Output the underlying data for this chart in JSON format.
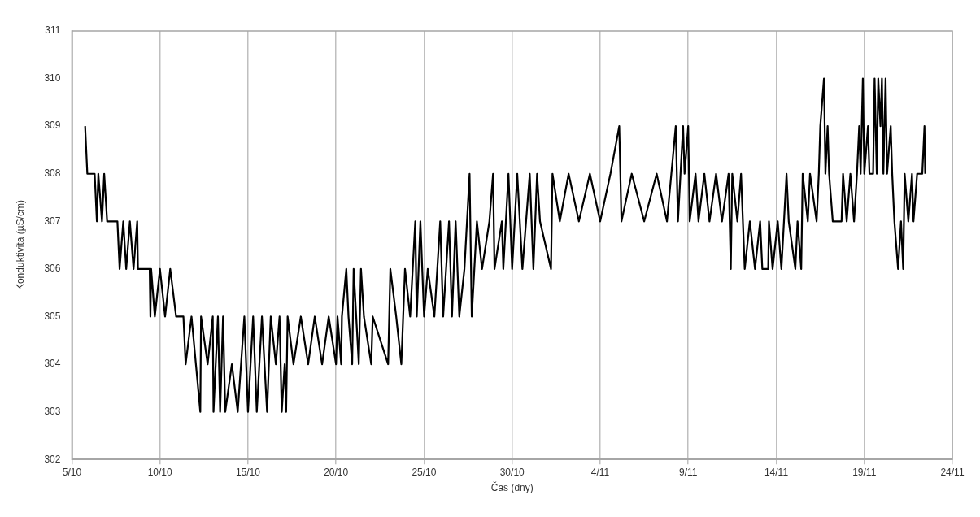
{
  "chart_data": {
    "type": "line",
    "xlabel": "Čas (dny)",
    "ylabel": "Konduktivita (µS/cm)",
    "grid": "x",
    "legend": false,
    "marker": "none",
    "line_style": "solid",
    "xlim": [
      "--10-05",
      "--11-24"
    ],
    "xticks": [
      {
        "value": "--10-05",
        "label": "5/10"
      },
      {
        "value": "--10-10",
        "label": "10/10"
      },
      {
        "value": "--10-15",
        "label": "15/10"
      },
      {
        "value": "--10-20",
        "label": "20/10"
      },
      {
        "value": "--10-25",
        "label": "25/10"
      },
      {
        "value": "--10-30",
        "label": "30/10"
      },
      {
        "value": "--11-04",
        "label": "4/11"
      },
      {
        "value": "--11-09",
        "label": "9/11"
      },
      {
        "value": "--11-14",
        "label": "14/11"
      },
      {
        "value": "--11-19",
        "label": "19/11"
      },
      {
        "value": "--11-24",
        "label": "24/11"
      }
    ],
    "ylim": [
      302,
      311
    ],
    "yticks": [
      302,
      303,
      304,
      305,
      306,
      307,
      308,
      309,
      310,
      311
    ],
    "series": [
      {
        "color": "#000000",
        "x": [
          "--10-05T18:00",
          "--10-05T21:00",
          "--10-06T07:00",
          "--10-06T10:00",
          "--10-06T12:00",
          "--10-06T17:00",
          "--10-06T20:00",
          "--10-07T00:00",
          "--10-07T14:00",
          "--10-07T17:00",
          "--10-07T22:00",
          "--10-08T02:00",
          "--10-08T07:00",
          "--10-08T12:00",
          "--10-08T17:00",
          "--10-08T18:00",
          "--10-09T10:00",
          "--10-09T11:00",
          "--10-09T12:00",
          "--10-09T17:00",
          "--10-10T00:00",
          "--10-10T07:00",
          "--10-10T14:00",
          "--10-10T22:00",
          "--10-11T08:00",
          "--10-11T11:00",
          "--10-11T19:00",
          "--10-12T07:00",
          "--10-12T08:00",
          "--10-12T17:00",
          "--10-13T00:00",
          "--10-13T01:00",
          "--10-13T07:00",
          "--10-13T10:00",
          "--10-13T14:00",
          "--10-13T17:00",
          "--10-14T02:00",
          "--10-14T10:00",
          "--10-14T19:00",
          "--10-15T00:00",
          "--10-15T07:00",
          "--10-15T12:00",
          "--10-15T19:00",
          "--10-16T02:00",
          "--10-16T07:00",
          "--10-16T14:00",
          "--10-16T19:00",
          "--10-16T22:00",
          "--10-17T02:00",
          "--10-17T04:00",
          "--10-17T06:00",
          "--10-17T14:00",
          "--10-18T00:00",
          "--10-18T10:00",
          "--10-18T19:00",
          "--10-19T05:00",
          "--10-19T14:00",
          "--10-20T00:00",
          "--10-20T02:00",
          "--10-20T07:00",
          "--10-20T08:00",
          "--10-20T14:00",
          "--10-20T17:00",
          "--10-20T22:00",
          "--10-21T00:00",
          "--10-21T07:00",
          "--10-21T10:00",
          "--10-21T14:00",
          "--10-22T00:00",
          "--10-22T02:00",
          "--10-22T23:00",
          "--10-23T02:00",
          "--10-23T10:00",
          "--10-23T17:00",
          "--10-23T22:00",
          "--10-24T05:00",
          "--10-24T12:00",
          "--10-24T14:00",
          "--10-24T19:00",
          "--10-25T00:00",
          "--10-25T05:00",
          "--10-25T14:00",
          "--10-25T22:00",
          "--10-26T02:00",
          "--10-26T10:00",
          "--10-26T14:00",
          "--10-26T19:00",
          "--10-27T00:00",
          "--10-27T07:00",
          "--10-27T14:00",
          "--10-27T17:00",
          "--10-28T00:00",
          "--10-28T07:00",
          "--10-28T17:00",
          "--10-28T22:00",
          "--10-29T00:00",
          "--10-29T10:00",
          "--10-29T12:00",
          "--10-29T19:00",
          "--10-30T00:00",
          "--10-30T07:00",
          "--10-30T14:00",
          "--10-31T00:00",
          "--10-31T05:00",
          "--10-31T10:00",
          "--10-31T14:00",
          "--11-01T05:00",
          "--11-01T07:00",
          "--11-01T17:00",
          "--11-02T05:00",
          "--11-02T19:00",
          "--11-03T10:00",
          "--11-04T00:00",
          "--11-04T14:00",
          "--11-05T02:00",
          "--11-05T05:00",
          "--11-05T19:00",
          "--11-06T12:00",
          "--11-07T05:00",
          "--11-07T19:00",
          "--11-08T07:00",
          "--11-08T10:00",
          "--11-08T17:00",
          "--11-08T19:00",
          "--11-09T00:00",
          "--11-09T02:00",
          "--11-09T10:00",
          "--11-09T14:00",
          "--11-09T22:00",
          "--11-10T05:00",
          "--11-10T14:00",
          "--11-10T22:00",
          "--11-11T07:00",
          "--11-11T10:00",
          "--11-11T12:00",
          "--11-11T19:00",
          "--11-12T00:00",
          "--11-12T05:00",
          "--11-12T12:00",
          "--11-12T19:00",
          "--11-13T02:00",
          "--11-13T05:00",
          "--11-13T13:00",
          "--11-13T14:00",
          "--11-13T19:00",
          "--11-14T02:00",
          "--11-14T07:00",
          "--11-14T14:00",
          "--11-14T17:00",
          "--11-15T02:00",
          "--11-15T05:00",
          "--11-15T10:00",
          "--11-15T12:00",
          "--11-15T19:00",
          "--11-15T22:00",
          "--11-16T07:00",
          "--11-16T10:00",
          "--11-16T12:00",
          "--11-16T17:00",
          "--11-16T19:00",
          "--11-16T22:00",
          "--11-17T00:00",
          "--11-17T05:00",
          "--11-17T17:00",
          "--11-17T19:00",
          "--11-18T00:00",
          "--11-18T05:00",
          "--11-18T10:00",
          "--11-18T14:00",
          "--11-18T17:00",
          "--11-18T19:00",
          "--11-18T22:00",
          "--11-19T00:00",
          "--11-19T05:00",
          "--11-19T07:00",
          "--11-19T12:00",
          "--11-19T14:00",
          "--11-19T17:00",
          "--11-19T19:00",
          "--11-19T22:00",
          "--11-20T00:00",
          "--11-20T02:00",
          "--11-20T05:00",
          "--11-20T07:00",
          "--11-20T12:00",
          "--11-20T14:00",
          "--11-20T17:00",
          "--11-20T22:00",
          "--11-21T02:00",
          "--11-21T05:00",
          "--11-21T07:00",
          "--11-21T12:00",
          "--11-21T17:00",
          "--11-21T19:00",
          "--11-22T00:00",
          "--11-22T07:00",
          "--11-22T10:00",
          "--11-22T11:00"
        ],
        "values": [
          309,
          308,
          308,
          307,
          308,
          307,
          308,
          307,
          307,
          306,
          307,
          306,
          307,
          306,
          307,
          306,
          306,
          305,
          306,
          305,
          306,
          305,
          306,
          305,
          305,
          304,
          305,
          303,
          305,
          304,
          305,
          303,
          305,
          303,
          305,
          303,
          304,
          303,
          305,
          303,
          305,
          303,
          305,
          303,
          305,
          304,
          305,
          303,
          304,
          303,
          305,
          304,
          305,
          304,
          305,
          304,
          305,
          304,
          305,
          304,
          305,
          306,
          305,
          304,
          306,
          304,
          306,
          305,
          304,
          305,
          304,
          306,
          305,
          304,
          306,
          305,
          307,
          305,
          307,
          305,
          306,
          305,
          307,
          305,
          307,
          305,
          307,
          305,
          306,
          308,
          305,
          307,
          306,
          307,
          308,
          306,
          307,
          306,
          308,
          306,
          308,
          306,
          308,
          306,
          308,
          307,
          306,
          308,
          307,
          308,
          307,
          308,
          307,
          308,
          309,
          307,
          308,
          307,
          308,
          307,
          309,
          307,
          309,
          308,
          309,
          307,
          308,
          307,
          308,
          307,
          308,
          307,
          308,
          306,
          308,
          307,
          308,
          306,
          307,
          306,
          307,
          306,
          306,
          307,
          306,
          307,
          306,
          308,
          307,
          306,
          307,
          306,
          308,
          307,
          308,
          307,
          308,
          309,
          310,
          308,
          309,
          308,
          307,
          307,
          308,
          307,
          308,
          307,
          308,
          309,
          308,
          310,
          308,
          309,
          308,
          308,
          310,
          308,
          310,
          309,
          310,
          308,
          310,
          308,
          309,
          308,
          307,
          306,
          307,
          306,
          308,
          307,
          308,
          307,
          308,
          308,
          309,
          308
        ]
      }
    ]
  }
}
